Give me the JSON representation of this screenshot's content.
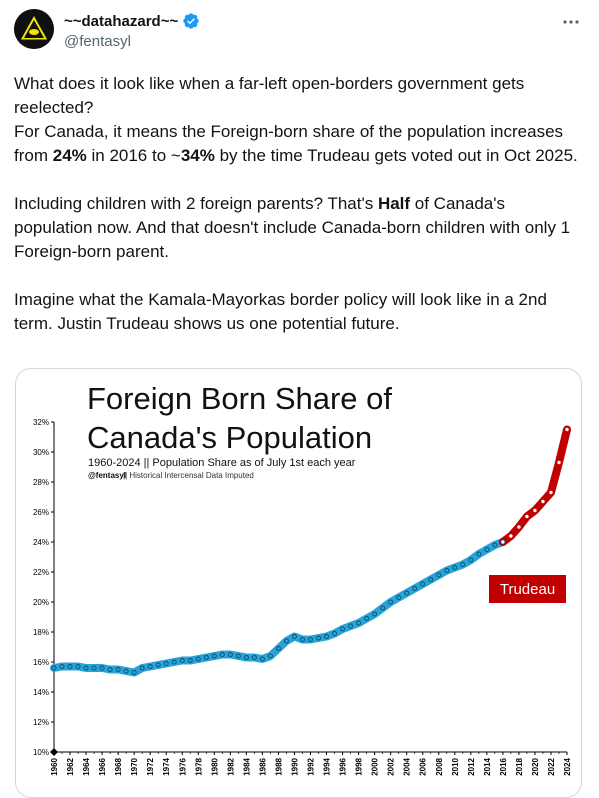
{
  "tweet": {
    "display_name": "~~datahazard~~",
    "handle": "@fentasyl",
    "paragraphs": [
      [
        "What does it look like when a far-left open-borders government gets reelected?"
      ],
      [
        "For Canada, it means the Foreign-born share of the population increases from ",
        {
          "b": "24%"
        },
        " in 2016 to ~",
        {
          "b": "34%"
        },
        " by the time Trudeau gets voted out in Oct 2025."
      ],
      [],
      [
        "Including children with 2 foreign parents? That's ",
        {
          "b": "Half"
        },
        " of Canada's population now. And that doesn't include Canada-born children with only 1 Foreign-born parent."
      ],
      [],
      [
        "Imagine what the Kamala-Mayorkas border policy will look like in a 2nd term. Justin Trudeau shows us one potential future."
      ]
    ]
  },
  "icons": {
    "avatar": "hazard-logo-icon",
    "verified": "verified-badge-icon",
    "more": "more-options-icon"
  },
  "colors": {
    "blue_series": "#27a3d8",
    "red_series": "#c00000",
    "text_secondary": "#536471",
    "verified": "#1d9bf0"
  },
  "chart_data": {
    "type": "line",
    "title": "Foreign Born Share of Canada's Population",
    "title_lines": [
      "Foreign Born Share of",
      "Canada's Population"
    ],
    "subtitle": "1960-2024 || Population Share as of July 1st each year",
    "credit_handle": "@fentasyl",
    "credit_note": " || Historical Intercensal Data Imputed",
    "ylim": [
      10,
      32
    ],
    "yticks": [
      "32%",
      "30%",
      "28%",
      "26%",
      "24%",
      "22%",
      "20%",
      "18%",
      "16%",
      "14%",
      "12%",
      "10%"
    ],
    "xticks": [
      "1960",
      "1962",
      "1964",
      "1966",
      "1968",
      "1970",
      "1972",
      "1974",
      "1976",
      "1978",
      "1980",
      "1982",
      "1984",
      "1986",
      "1988",
      "1990",
      "1992",
      "1994",
      "1996",
      "1998",
      "2000",
      "2002",
      "2004",
      "2006",
      "2008",
      "2010",
      "2012",
      "2014",
      "2016",
      "2018",
      "2020",
      "2022",
      "2024"
    ],
    "annotation": "Trudeau",
    "series": [
      {
        "name": "",
        "x": [
          1960,
          1961,
          1962,
          1963,
          1964,
          1965,
          1966,
          1967,
          1968,
          1969,
          1970,
          1971,
          1972,
          1973,
          1974,
          1975,
          1976,
          1977,
          1978,
          1979,
          1980,
          1981,
          1982,
          1983,
          1984,
          1985,
          1986,
          1987,
          1988,
          1989,
          1990,
          1991,
          1992,
          1993,
          1994,
          1995,
          1996,
          1997,
          1998,
          1999,
          2000,
          2001,
          2002,
          2003,
          2004,
          2005,
          2006,
          2007,
          2008,
          2009,
          2010,
          2011,
          2012,
          2013,
          2014,
          2015,
          2016
        ],
        "y": [
          15.6,
          15.7,
          15.7,
          15.7,
          15.6,
          15.6,
          15.6,
          15.5,
          15.5,
          15.4,
          15.3,
          15.6,
          15.7,
          15.8,
          15.9,
          16.0,
          16.1,
          16.1,
          16.2,
          16.3,
          16.4,
          16.5,
          16.5,
          16.4,
          16.3,
          16.3,
          16.2,
          16.4,
          16.9,
          17.4,
          17.7,
          17.5,
          17.5,
          17.6,
          17.7,
          17.9,
          18.2,
          18.4,
          18.6,
          18.9,
          19.2,
          19.6,
          20.0,
          20.3,
          20.6,
          20.9,
          21.2,
          21.5,
          21.8,
          22.1,
          22.3,
          22.5,
          22.8,
          23.2,
          23.5,
          23.8,
          24.0
        ]
      },
      {
        "name": "Trudeau",
        "x": [
          2016,
          2017,
          2018,
          2019,
          2020,
          2021,
          2022,
          2023,
          2024
        ],
        "y": [
          24.0,
          24.4,
          25.0,
          25.7,
          26.1,
          26.7,
          27.3,
          29.3,
          31.5
        ]
      }
    ]
  }
}
